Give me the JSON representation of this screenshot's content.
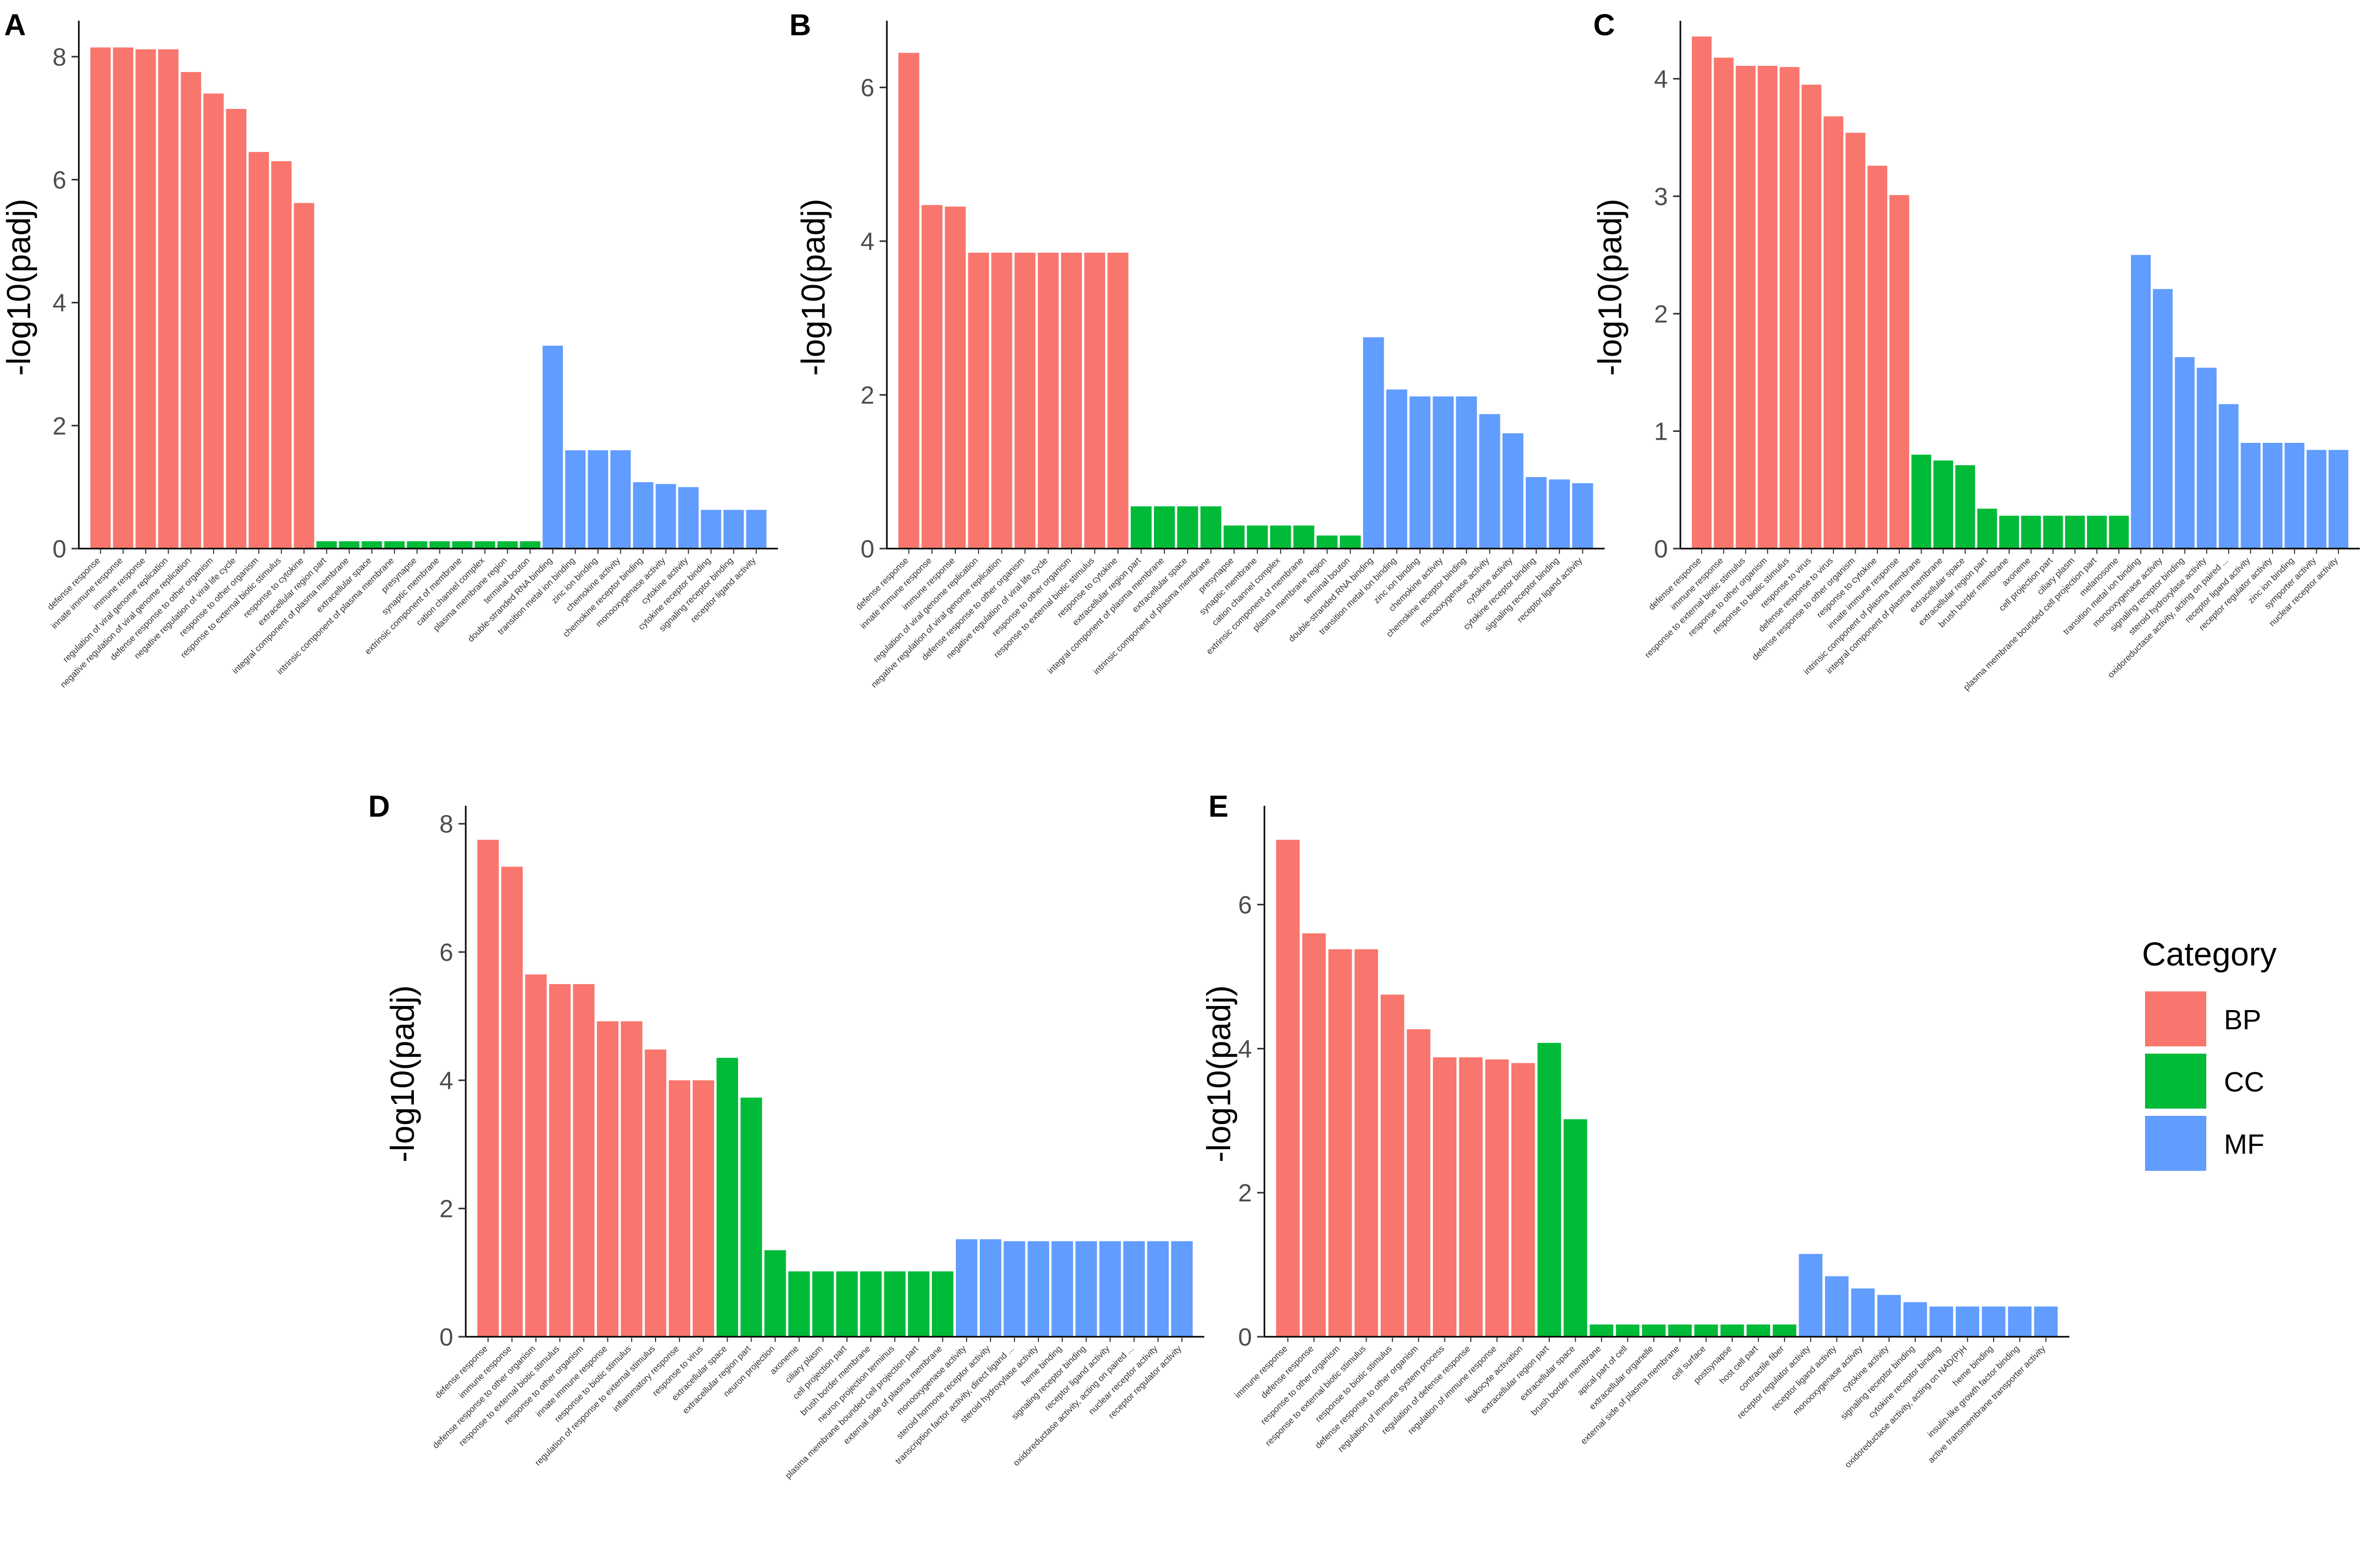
{
  "legend": {
    "title": "Category",
    "items": [
      {
        "label": "BP",
        "color": "#F8766D"
      },
      {
        "label": "CC",
        "color": "#00BA38"
      },
      {
        "label": "MF",
        "color": "#619CFF"
      }
    ]
  },
  "chart_data": [
    {
      "panel": "A",
      "type": "bar",
      "ylabel": "-log10(padj)",
      "ylim": [
        0,
        8.5
      ],
      "yticks": [
        0,
        2,
        4,
        6,
        8
      ],
      "categories": [
        "defense response",
        "innate immune response",
        "immune response",
        "regulation of viral genome replication",
        "negative regulation of viral genome replication",
        "defense response to other organism",
        "negative regulation of viral life cycle",
        "response to other organism",
        "response to external biotic stimulus",
        "response to cytokine",
        "extracellular region part",
        "integral component of plasma membrane",
        "extracellular space",
        "intrinsic component of plasma membrane",
        "presynapse",
        "synaptic membrane",
        "extrinsic component of membrane",
        "cation channel complex",
        "plasma membrane region",
        "terminal bouton",
        "double-stranded RNA binding",
        "transition metal ion binding",
        "zinc ion binding",
        "chemokine activity",
        "chemokine receptor binding",
        "monooxygenase activity",
        "cytokine activity",
        "cytokine receptor binding",
        "signaling receptor binding",
        "receptor ligand activity"
      ],
      "groups": [
        "BP",
        "BP",
        "BP",
        "BP",
        "BP",
        "BP",
        "BP",
        "BP",
        "BP",
        "BP",
        "CC",
        "CC",
        "CC",
        "CC",
        "CC",
        "CC",
        "CC",
        "CC",
        "CC",
        "CC",
        "MF",
        "MF",
        "MF",
        "MF",
        "MF",
        "MF",
        "MF",
        "MF",
        "MF",
        "MF"
      ],
      "values": [
        8.15,
        8.15,
        8.12,
        8.12,
        7.75,
        7.4,
        7.15,
        6.45,
        6.3,
        5.62,
        0.12,
        0.12,
        0.12,
        0.12,
        0.12,
        0.12,
        0.12,
        0.12,
        0.12,
        0.12,
        3.3,
        1.6,
        1.6,
        1.6,
        1.08,
        1.05,
        1.0,
        0.63,
        0.63,
        0.63
      ]
    },
    {
      "panel": "B",
      "type": "bar",
      "ylabel": "-log10(padj)",
      "ylim": [
        0,
        6.8
      ],
      "yticks": [
        0,
        2,
        4,
        6
      ],
      "categories": [
        "defense response",
        "innate immune response",
        "immune response",
        "regulation of viral genome replication",
        "negative regulation of viral genome replication",
        "defense response to other organism",
        "negative regulation of viral life cycle",
        "response to other organism",
        "response to external biotic stimulus",
        "response to cytokine",
        "extracellular region part",
        "integral component of plasma membrane",
        "extracellular space",
        "intrinsic component of plasma membrane",
        "presynapse",
        "synaptic membrane",
        "cation channel complex",
        "extrinsic component of membrane",
        "plasma membrane region",
        "terminal bouton",
        "double-stranded RNA binding",
        "transition metal ion binding",
        "zinc ion binding",
        "chemokine activity",
        "chemokine receptor binding",
        "monooxygenase activity",
        "cytokine activity",
        "cytokine receptor binding",
        "signaling receptor binding",
        "receptor ligand activity"
      ],
      "groups": [
        "BP",
        "BP",
        "BP",
        "BP",
        "BP",
        "BP",
        "BP",
        "BP",
        "BP",
        "BP",
        "CC",
        "CC",
        "CC",
        "CC",
        "CC",
        "CC",
        "CC",
        "CC",
        "CC",
        "CC",
        "MF",
        "MF",
        "MF",
        "MF",
        "MF",
        "MF",
        "MF",
        "MF",
        "MF",
        "MF"
      ],
      "values": [
        6.45,
        4.47,
        4.45,
        3.85,
        3.85,
        3.85,
        3.85,
        3.85,
        3.85,
        3.85,
        0.55,
        0.55,
        0.55,
        0.55,
        0.3,
        0.3,
        0.3,
        0.3,
        0.17,
        0.17,
        2.75,
        2.07,
        1.98,
        1.98,
        1.98,
        1.75,
        1.5,
        0.93,
        0.9,
        0.85
      ]
    },
    {
      "panel": "C",
      "type": "bar",
      "ylabel": "-log10(padj)",
      "ylim": [
        0,
        4.45
      ],
      "yticks": [
        0,
        1,
        2,
        3,
        4
      ],
      "categories": [
        "defense response",
        "immune response",
        "response to external biotic stimulus",
        "response to other organism",
        "response to biotic stimulus",
        "response to virus",
        "defense response to virus",
        "defense response to other organism",
        "response to cytokine",
        "innate immune response",
        "intrinsic component of plasma membrane",
        "integral component of plasma membrane",
        "extracellular space",
        "extracellular region part",
        "brush border membrane",
        "axoneme",
        "cell projection part",
        "ciliary plasm",
        "plasma membrane bounded cell projection part",
        "melanosome",
        "transition metal ion binding",
        "monooxygenase activity",
        "signaling receptor binding",
        "steroid hydroxylase activity",
        "oxidoreductase activity, acting on paired ...",
        "receptor ligand activity",
        "receptor regulator activity",
        "zinc ion binding",
        "symporter activity",
        "nuclear receptor activity"
      ],
      "groups": [
        "BP",
        "BP",
        "BP",
        "BP",
        "BP",
        "BP",
        "BP",
        "BP",
        "BP",
        "BP",
        "CC",
        "CC",
        "CC",
        "CC",
        "CC",
        "CC",
        "CC",
        "CC",
        "CC",
        "CC",
        "MF",
        "MF",
        "MF",
        "MF",
        "MF",
        "MF",
        "MF",
        "MF",
        "MF",
        "MF"
      ],
      "values": [
        4.36,
        4.18,
        4.11,
        4.11,
        4.1,
        3.95,
        3.68,
        3.54,
        3.26,
        3.01,
        0.8,
        0.75,
        0.71,
        0.34,
        0.28,
        0.28,
        0.28,
        0.28,
        0.28,
        0.28,
        2.5,
        2.21,
        1.63,
        1.54,
        1.23,
        0.9,
        0.9,
        0.9,
        0.84,
        0.84
      ]
    },
    {
      "panel": "D",
      "type": "bar",
      "ylabel": "-log10(padj)",
      "ylim": [
        0,
        8.2
      ],
      "yticks": [
        0,
        2,
        4,
        6,
        8
      ],
      "categories": [
        "defense response",
        "immune response",
        "defense response to other organism",
        "response to external biotic stimulus",
        "response to other organism",
        "innate immune response",
        "response to biotic stimulus",
        "regulation of response to external stimulus",
        "inflammatory response",
        "response to virus",
        "extracellular space",
        "extracellular region part",
        "neuron projection",
        "axoneme",
        "ciliary plasm",
        "cell projection part",
        "brush border membrane",
        "neuron projection terminus",
        "plasma membrane bounded cell projection part",
        "external side of plasma membrane",
        "monooxygenase activity",
        "steroid hormone receptor activity",
        "transcription factor activity, direct ligand ...",
        "steroid hydroxylase activity",
        "heme binding",
        "signaling receptor binding",
        "receptor ligand activity",
        "oxidoreductase activity, acting on paired ...",
        "nuclear receptor activity",
        "receptor regulator activity"
      ],
      "groups": [
        "BP",
        "BP",
        "BP",
        "BP",
        "BP",
        "BP",
        "BP",
        "BP",
        "BP",
        "BP",
        "CC",
        "CC",
        "CC",
        "CC",
        "CC",
        "CC",
        "CC",
        "CC",
        "CC",
        "CC",
        "MF",
        "MF",
        "MF",
        "MF",
        "MF",
        "MF",
        "MF",
        "MF",
        "MF",
        "MF"
      ],
      "values": [
        7.75,
        7.33,
        5.65,
        5.5,
        5.5,
        4.92,
        4.92,
        4.48,
        4.0,
        4.0,
        4.35,
        3.73,
        1.35,
        1.02,
        1.02,
        1.02,
        1.02,
        1.02,
        1.02,
        1.02,
        1.52,
        1.52,
        1.49,
        1.49,
        1.49,
        1.49,
        1.49,
        1.49,
        1.49,
        1.49
      ]
    },
    {
      "panel": "E",
      "type": "bar",
      "ylabel": "-log10(padj)",
      "ylim": [
        0,
        7.3
      ],
      "yticks": [
        0,
        2,
        4,
        6
      ],
      "categories": [
        "immune response",
        "defense response",
        "response to other organism",
        "response to external biotic stimulus",
        "response to biotic stimulus",
        "defense response to other organism",
        "regulation of immune system process",
        "regulation of defense response",
        "regulation of immune response",
        "leukocyte activation",
        "extracellular region part",
        "extracellular space",
        "brush border membrane",
        "apical part of cell",
        "extracellular organelle",
        "external side of plasma membrane",
        "cell surface",
        "postsynapse",
        "host cell part",
        "contractile fiber",
        "receptor regulator activity",
        "receptor ligand activity",
        "monooxygenase activity",
        "cytokine activity",
        "signaling receptor binding",
        "cytokine receptor binding",
        "oxidoreductase activity, acting on NAD(P)H",
        "heme binding",
        "insulin-like growth factor binding",
        "active transmembrane transporter activity"
      ],
      "groups": [
        "BP",
        "BP",
        "BP",
        "BP",
        "BP",
        "BP",
        "BP",
        "BP",
        "BP",
        "BP",
        "CC",
        "CC",
        "CC",
        "CC",
        "CC",
        "CC",
        "CC",
        "CC",
        "CC",
        "CC",
        "MF",
        "MF",
        "MF",
        "MF",
        "MF",
        "MF",
        "MF",
        "MF",
        "MF",
        "MF"
      ],
      "values": [
        6.9,
        5.6,
        5.38,
        5.38,
        4.75,
        4.27,
        3.88,
        3.88,
        3.85,
        3.8,
        4.08,
        3.02,
        0.17,
        0.17,
        0.17,
        0.17,
        0.17,
        0.17,
        0.17,
        0.17,
        1.15,
        0.84,
        0.67,
        0.58,
        0.48,
        0.42,
        0.42,
        0.42,
        0.42,
        0.42
      ]
    }
  ]
}
